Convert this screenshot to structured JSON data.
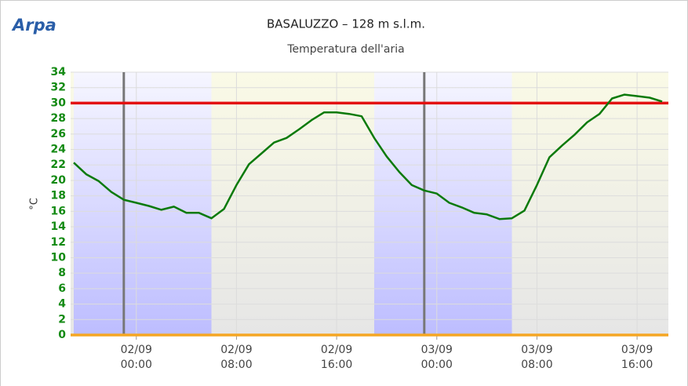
{
  "logo": "Arpa",
  "chart_data": {
    "type": "line",
    "title": "BASALUZZO – 128 m s.l.m.",
    "subtitle": "Temperatura dell'aria",
    "y_label": "°C",
    "x": [
      "01/09 19:00",
      "01/09 20:00",
      "01/09 21:00",
      "01/09 22:00",
      "01/09 23:00",
      "02/09 00:00",
      "02/09 01:00",
      "02/09 02:00",
      "02/09 03:00",
      "02/09 04:00",
      "02/09 05:00",
      "02/09 06:00",
      "02/09 07:00",
      "02/09 08:00",
      "02/09 09:00",
      "02/09 10:00",
      "02/09 11:00",
      "02/09 12:00",
      "02/09 13:00",
      "02/09 14:00",
      "02/09 15:00",
      "02/09 16:00",
      "02/09 17:00",
      "02/09 18:00",
      "02/09 19:00",
      "02/09 20:00",
      "02/09 21:00",
      "02/09 22:00",
      "02/09 23:00",
      "03/09 00:00",
      "03/09 01:00",
      "03/09 02:00",
      "03/09 03:00",
      "03/09 04:00",
      "03/09 05:00",
      "03/09 06:00",
      "03/09 07:00",
      "03/09 08:00",
      "03/09 09:00",
      "03/09 10:00",
      "03/09 11:00",
      "03/09 12:00",
      "03/09 13:00",
      "03/09 14:00",
      "03/09 15:00",
      "03/09 16:00",
      "03/09 17:00",
      "03/09 18:00"
    ],
    "series": [
      {
        "color": "#0a7a0a",
        "values": [
          22.3,
          20.8,
          19.9,
          18.5,
          17.5,
          17.1,
          16.7,
          16.2,
          16.6,
          15.8,
          15.8,
          15.1,
          16.3,
          19.4,
          22.1,
          23.5,
          24.9,
          25.5,
          26.6,
          27.8,
          28.8,
          28.8,
          28.6,
          28.3,
          25.5,
          23.1,
          21.1,
          19.4,
          18.7,
          18.3,
          17.1,
          16.5,
          15.8,
          15.6,
          15.0,
          15.1,
          16.1,
          19.4,
          23.0,
          24.5,
          25.9,
          27.5,
          28.6,
          30.6,
          31.1,
          30.9,
          30.7,
          30.2
        ]
      }
    ],
    "xlim": [
      "01/09 18:45",
      "03/09 18:30"
    ],
    "xticks": [
      "02/09 00:00",
      "02/09 08:00",
      "02/09 16:00",
      "03/09 00:00",
      "03/09 08:00",
      "03/09 16:00"
    ],
    "ylim": [
      0,
      34
    ],
    "yticks": [
      0,
      2,
      4,
      6,
      8,
      10,
      12,
      14,
      16,
      18,
      20,
      22,
      24,
      26,
      28,
      30,
      32,
      34
    ],
    "grid": true,
    "night_bands": [
      [
        "01/09 19:00",
        "02/09 06:00"
      ],
      [
        "02/09 19:00",
        "03/09 06:00"
      ]
    ],
    "vertical_lines": [
      "01/09 23:00",
      "02/09 23:00"
    ],
    "thresholds": [
      {
        "value": 30,
        "color": "#e31010"
      },
      {
        "value": 0,
        "color": "#f5a623"
      }
    ]
  }
}
